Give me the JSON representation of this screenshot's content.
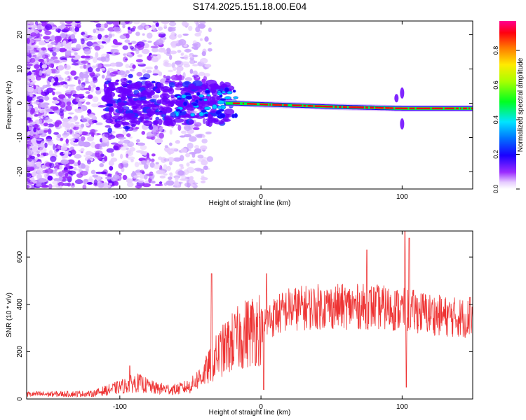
{
  "figure_title": "S174.2025.151.18.00.E04",
  "chart_data": [
    {
      "type": "heatmap",
      "xlabel": "Height of straight line (km)",
      "ylabel": "Frequency (Hz)",
      "xlim": [
        -166,
        150
      ],
      "ylim": [
        -25,
        24
      ],
      "xticks": [
        -100,
        0,
        100
      ],
      "yticks": [
        -20,
        -10,
        0,
        10,
        20
      ],
      "colorbar": {
        "label": "Normalized spectral amplitude",
        "range": [
          0,
          0.97
        ],
        "ticks": [
          0.0,
          0.2,
          0.4,
          0.6,
          0.8
        ],
        "colormap": [
          "#ffffff",
          "#e6ccff",
          "#8800ff",
          "#0000ff",
          "#00e5ff",
          "#00ff00",
          "#ffff00",
          "#ff8800",
          "#ff0000",
          "#ff00aa"
        ]
      },
      "ridge": {
        "description_points": [
          {
            "x": -60,
            "f": 0.0
          },
          {
            "x": -20,
            "f": 0.0
          },
          {
            "x": 50,
            "f": -1.0
          },
          {
            "x": 100,
            "f": -1.5
          },
          {
            "x": 150,
            "f": -1.5
          }
        ]
      }
    },
    {
      "type": "line",
      "xlabel": "Height of straight line (km)",
      "ylabel": "SNR (10 * v/v)",
      "xlim": [
        -166,
        150
      ],
      "ylim": [
        0,
        710
      ],
      "xticks": [
        -100,
        0,
        100
      ],
      "yticks": [
        0,
        200,
        400,
        600
      ],
      "color": "#ee3333",
      "envelope": [
        {
          "x": -166,
          "y": 20
        },
        {
          "x": -120,
          "y": 22
        },
        {
          "x": -100,
          "y": 50
        },
        {
          "x": -88,
          "y": 70
        },
        {
          "x": -75,
          "y": 45
        },
        {
          "x": -60,
          "y": 40
        },
        {
          "x": -50,
          "y": 55
        },
        {
          "x": -40,
          "y": 110
        },
        {
          "x": -30,
          "y": 190
        },
        {
          "x": -20,
          "y": 240
        },
        {
          "x": -10,
          "y": 280
        },
        {
          "x": 0,
          "y": 310
        },
        {
          "x": 10,
          "y": 350
        },
        {
          "x": 20,
          "y": 380
        },
        {
          "x": 40,
          "y": 390
        },
        {
          "x": 60,
          "y": 390
        },
        {
          "x": 80,
          "y": 390
        },
        {
          "x": 95,
          "y": 380
        },
        {
          "x": 110,
          "y": 370
        },
        {
          "x": 130,
          "y": 350
        },
        {
          "x": 150,
          "y": 340
        }
      ],
      "spikes": [
        {
          "x": -93,
          "y": 140
        },
        {
          "x": -35,
          "y": 530
        },
        {
          "x": -18,
          "y": 300
        },
        {
          "x": 2,
          "y": 40
        },
        {
          "x": 4,
          "y": 530
        },
        {
          "x": 75,
          "y": 630
        },
        {
          "x": 102,
          "y": 710
        },
        {
          "x": 103,
          "y": 50
        },
        {
          "x": 105,
          "y": 680
        },
        {
          "x": 148,
          "y": 430
        }
      ]
    }
  ]
}
